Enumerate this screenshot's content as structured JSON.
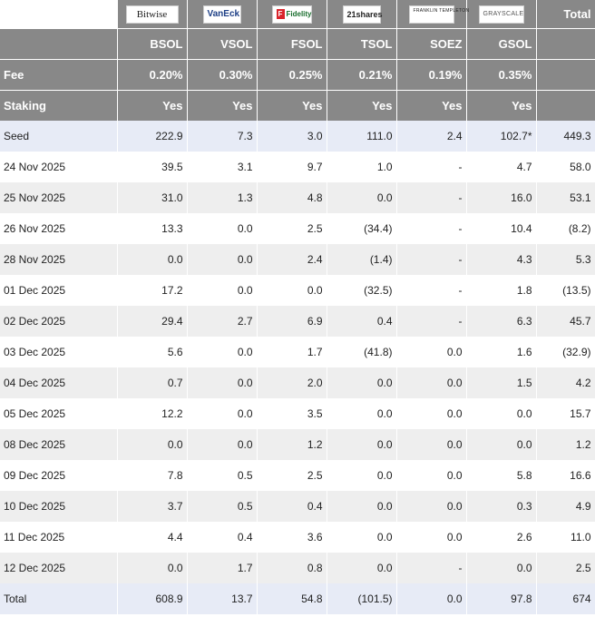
{
  "header": {
    "logos": [
      "Bitwise",
      "VanEck",
      "Fidelity",
      "21shares",
      "FRANKLIN TEMPLETON",
      "GRAYSCALE"
    ],
    "total_label": "Total",
    "tickers": [
      "BSOL",
      "VSOL",
      "FSOL",
      "TSOL",
      "SOEZ",
      "GSOL"
    ],
    "fee_label": "Fee",
    "fees": [
      "0.20%",
      "0.30%",
      "0.25%",
      "0.21%",
      "0.19%",
      "0.35%"
    ],
    "staking_label": "Staking",
    "staking": [
      "Yes",
      "Yes",
      "Yes",
      "Yes",
      "Yes",
      "Yes"
    ]
  },
  "rows": [
    {
      "label": "Seed",
      "values": [
        "222.9",
        "7.3",
        "3.0",
        "111.0",
        "2.4",
        "102.7*"
      ],
      "total": "449.3"
    },
    {
      "label": "24 Nov 2025",
      "values": [
        "39.5",
        "3.1",
        "9.7",
        "1.0",
        "-",
        "4.7"
      ],
      "total": "58.0"
    },
    {
      "label": "25 Nov 2025",
      "values": [
        "31.0",
        "1.3",
        "4.8",
        "0.0",
        "-",
        "16.0"
      ],
      "total": "53.1"
    },
    {
      "label": "26 Nov 2025",
      "values": [
        "13.3",
        "0.0",
        "2.5",
        "(34.4)",
        "-",
        "10.4"
      ],
      "total": "(8.2)"
    },
    {
      "label": "28 Nov 2025",
      "values": [
        "0.0",
        "0.0",
        "2.4",
        "(1.4)",
        "-",
        "4.3"
      ],
      "total": "5.3"
    },
    {
      "label": "01 Dec 2025",
      "values": [
        "17.2",
        "0.0",
        "0.0",
        "(32.5)",
        "-",
        "1.8"
      ],
      "total": "(13.5)"
    },
    {
      "label": "02 Dec 2025",
      "values": [
        "29.4",
        "2.7",
        "6.9",
        "0.4",
        "-",
        "6.3"
      ],
      "total": "45.7"
    },
    {
      "label": "03 Dec 2025",
      "values": [
        "5.6",
        "0.0",
        "1.7",
        "(41.8)",
        "0.0",
        "1.6"
      ],
      "total": "(32.9)"
    },
    {
      "label": "04 Dec 2025",
      "values": [
        "0.7",
        "0.0",
        "2.0",
        "0.0",
        "0.0",
        "1.5"
      ],
      "total": "4.2"
    },
    {
      "label": "05 Dec 2025",
      "values": [
        "12.2",
        "0.0",
        "3.5",
        "0.0",
        "0.0",
        "0.0"
      ],
      "total": "15.7"
    },
    {
      "label": "08 Dec 2025",
      "values": [
        "0.0",
        "0.0",
        "1.2",
        "0.0",
        "0.0",
        "0.0"
      ],
      "total": "1.2"
    },
    {
      "label": "09 Dec 2025",
      "values": [
        "7.8",
        "0.5",
        "2.5",
        "0.0",
        "0.0",
        "5.8"
      ],
      "total": "16.6"
    },
    {
      "label": "10 Dec 2025",
      "values": [
        "3.7",
        "0.5",
        "0.4",
        "0.0",
        "0.0",
        "0.3"
      ],
      "total": "4.9"
    },
    {
      "label": "11 Dec 2025",
      "values": [
        "4.4",
        "0.4",
        "3.6",
        "0.0",
        "0.0",
        "2.6"
      ],
      "total": "11.0"
    },
    {
      "label": "12 Dec 2025",
      "values": [
        "0.0",
        "1.7",
        "0.8",
        "0.0",
        "-",
        "0.0"
      ],
      "total": "2.5"
    },
    {
      "label": "Total",
      "values": [
        "608.9",
        "13.7",
        "54.8",
        "(101.5)",
        "0.0",
        "97.8"
      ],
      "total": "674"
    }
  ],
  "colors": {
    "header_bg": "#888888",
    "seed_total_bg": "#e7ebf6",
    "stripe_bg": "#eeeeee",
    "negative": "#d21f1f"
  }
}
